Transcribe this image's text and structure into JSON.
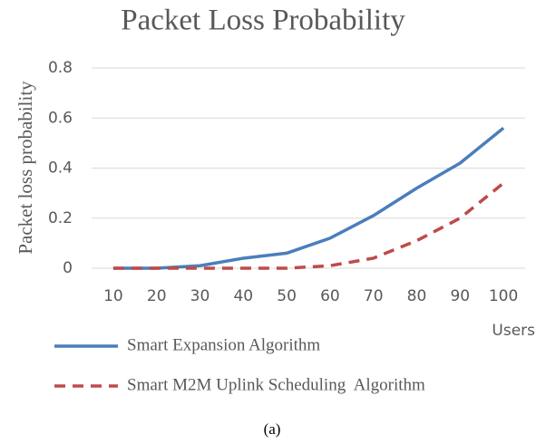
{
  "chart_data": {
    "type": "line",
    "title": "Packet Loss Probability",
    "y_label": "Packet loss probability",
    "x_label": "Users",
    "caption": "(a)",
    "categories": [
      "10",
      "20",
      "30",
      "40",
      "50",
      "60",
      "70",
      "80",
      "90",
      "100"
    ],
    "series": [
      {
        "name": "Smart Expansion Algorithm",
        "color": "#4a7ebb",
        "style": "solid",
        "values": [
          0,
          0,
          0.01,
          0.04,
          0.06,
          0.12,
          0.21,
          0.32,
          0.42,
          0.56
        ]
      },
      {
        "name": "Smart M2M Uplink Scheduling  Algorithm",
        "color": "#be4b48",
        "style": "dashed",
        "values": [
          0,
          0,
          0,
          0,
          0,
          0.01,
          0.04,
          0.11,
          0.2,
          0.34
        ]
      }
    ],
    "ylim": [
      0,
      0.8
    ],
    "yticks": [
      0,
      0.2,
      0.4,
      0.6,
      0.8
    ],
    "grid": true
  }
}
